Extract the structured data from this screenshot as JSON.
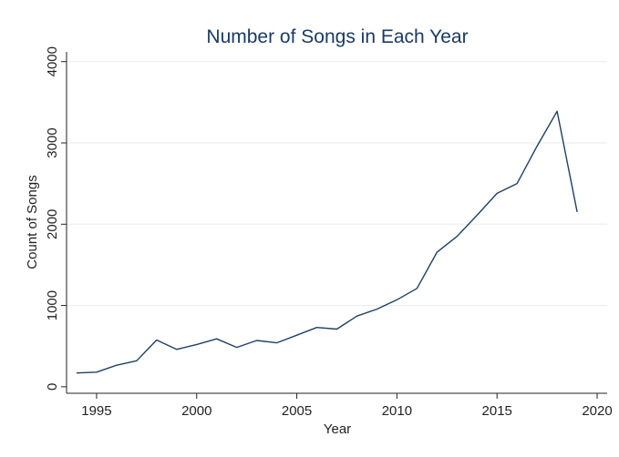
{
  "chart_data": {
    "type": "line",
    "title": "Number of Songs in Each Year",
    "xlabel": "Year",
    "ylabel": "Count of Songs",
    "xlim": [
      1993.5,
      2020.5
    ],
    "ylim": [
      -80,
      4120
    ],
    "x_ticks": [
      1995,
      2000,
      2005,
      2010,
      2015,
      2020
    ],
    "y_ticks": [
      0,
      1000,
      2000,
      3000,
      4000
    ],
    "grid": true,
    "colors": {
      "line": "#1f3f66",
      "title": "#1a3a66"
    },
    "series": [
      {
        "x": [
          1994,
          1995,
          1996,
          1997,
          1998,
          1999,
          2000,
          2001,
          2002,
          2003,
          2004,
          2005,
          2006,
          2007,
          2008,
          2009,
          2010,
          2011,
          2012,
          2013,
          2014,
          2015,
          2016,
          2017,
          2018,
          2019
        ],
        "values": [
          170,
          180,
          265,
          320,
          575,
          460,
          520,
          590,
          485,
          570,
          540,
          635,
          730,
          710,
          870,
          955,
          1070,
          1210,
          1655,
          1850,
          2110,
          2380,
          2500,
          2960,
          3390,
          2150
        ]
      }
    ]
  }
}
